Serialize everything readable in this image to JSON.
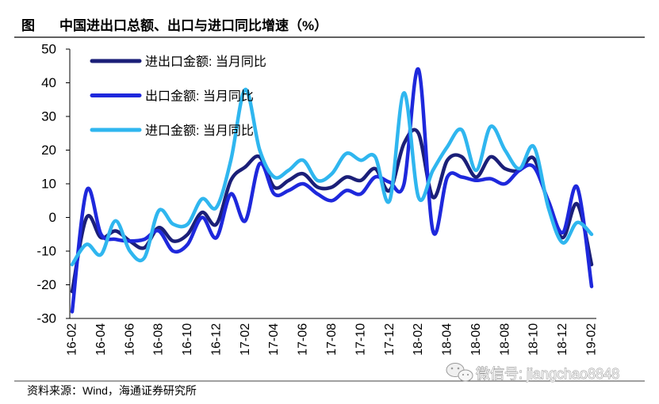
{
  "figure_label": "图",
  "source": "资料来源：Wind，海通证券研究所",
  "watermark": "微信号: jiangchao8848",
  "chart_data": {
    "type": "line",
    "title": "中国进出口总额、出口与进口同比增速（%）",
    "xlabel": "",
    "ylabel": "",
    "x_tick_labels": [
      "16-02",
      "16-04",
      "16-06",
      "16-08",
      "16-10",
      "16-12",
      "17-02",
      "17-04",
      "17-06",
      "17-08",
      "17-10",
      "17-12",
      "18-02",
      "18-04",
      "18-06",
      "18-08",
      "18-10",
      "18-12",
      "19-02"
    ],
    "ylim": [
      -30,
      50
    ],
    "yticks": [
      50,
      40,
      30,
      20,
      10,
      0,
      -10,
      -20,
      -30
    ],
    "grid": false,
    "smoothed": true,
    "legend_position": "top-left",
    "series": [
      {
        "name": "进出口金额: 当月同比",
        "color": "#1b1f78",
        "values": [
          -22,
          0,
          -6,
          -4,
          -7,
          -9,
          -3,
          -7,
          -5,
          1.5,
          -2,
          11,
          15,
          18,
          9,
          11,
          13,
          9,
          9,
          12,
          11,
          14.5,
          8,
          22,
          25,
          6,
          17,
          18,
          12,
          18,
          14.5,
          14,
          17.5,
          4,
          -6,
          4,
          -14
        ]
      },
      {
        "name": "出口金额: 当月同比",
        "color": "#1e28dc",
        "values": [
          -28,
          8,
          -5,
          -6.5,
          -7,
          -6.5,
          -4,
          -10,
          -8,
          0,
          -6,
          7,
          -1,
          16,
          7,
          8,
          10,
          7,
          5,
          8,
          7,
          12,
          10.5,
          10,
          44,
          -4,
          12,
          12,
          11,
          11.5,
          10,
          14,
          15,
          5,
          -4.5,
          9,
          -20.5
        ]
      },
      {
        "name": "进口金额: 当月同比",
        "color": "#2fb6ef",
        "values": [
          -14,
          -8,
          -11,
          -1,
          -10,
          -12,
          2,
          -2,
          -2,
          5.5,
          3,
          17,
          38,
          20,
          12,
          14,
          17,
          11,
          13,
          19,
          17,
          18,
          5,
          37,
          6,
          14,
          21,
          26,
          14,
          27,
          20,
          14.5,
          21,
          3,
          -7.5,
          -1.5,
          -5
        ]
      }
    ]
  }
}
